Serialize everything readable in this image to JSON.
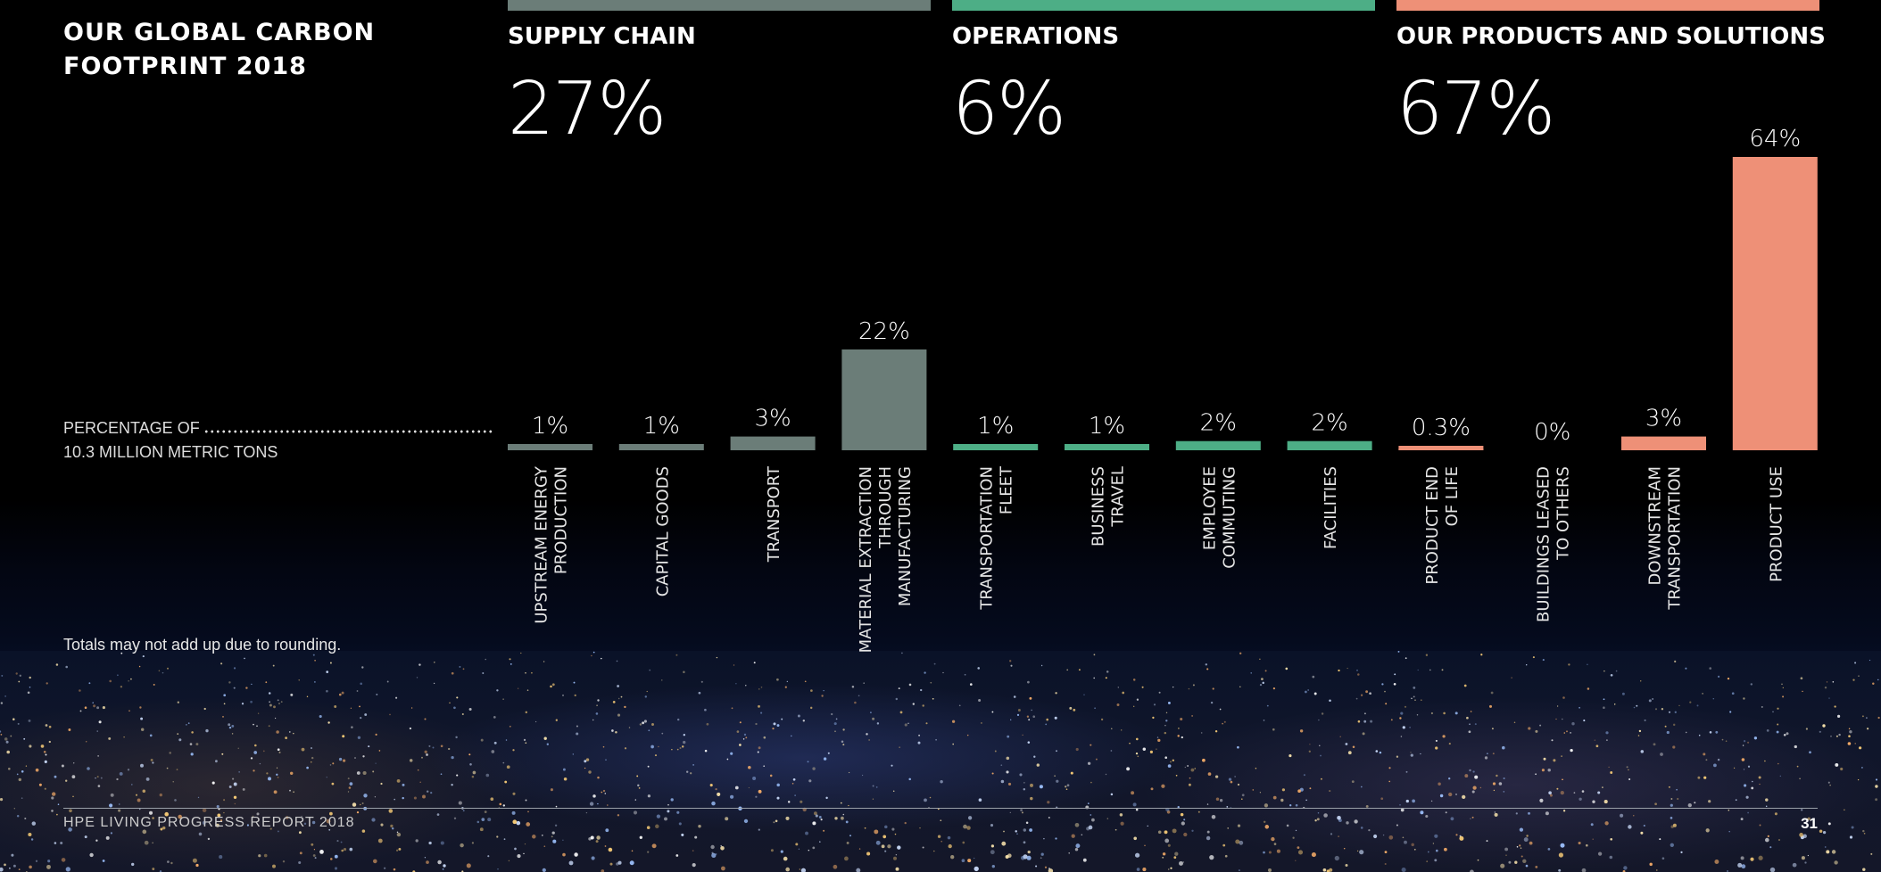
{
  "title": "OUR GLOBAL CARBON\nFOOTPRINT 2018",
  "y_note": [
    "PERCENTAGE OF",
    "10.3 MILLION METRIC TONS"
  ],
  "footnote": "Totals may not add up due to rounding.",
  "footer": {
    "report": "HPE LIVING PROGRESS REPORT 2018",
    "page": "31"
  },
  "colors": {
    "supply_chain": "#6b7d78",
    "operations": "#4dae86",
    "products": "#ee9077"
  },
  "categories": [
    {
      "key": "supply_chain",
      "title": "SUPPLY CHAIN",
      "total": "27%"
    },
    {
      "key": "operations",
      "title": "OPERATIONS",
      "total": "6%"
    },
    {
      "key": "products",
      "title": "OUR PRODUCTS AND SOLUTIONS",
      "total": "67%"
    }
  ],
  "chart_data": {
    "type": "bar",
    "title": "OUR GLOBAL CARBON FOOTPRINT 2018",
    "ylabel": "PERCENTAGE OF 10.3 MILLION METRIC TONS",
    "ylim": [
      0,
      64
    ],
    "series": [
      {
        "group": "supply_chain",
        "items": [
          {
            "label": [
              "UPSTREAM ENERGY",
              "PRODUCTION"
            ],
            "value": 1,
            "display": "1%"
          },
          {
            "label": [
              "CAPITAL GOODS"
            ],
            "value": 1,
            "display": "1%"
          },
          {
            "label": [
              "TRANSPORT"
            ],
            "value": 3,
            "display": "3%"
          },
          {
            "label": [
              "MATERIAL EXTRACTION",
              "THROUGH",
              "MANUFACTURING"
            ],
            "value": 22,
            "display": "22%"
          }
        ]
      },
      {
        "group": "operations",
        "items": [
          {
            "label": [
              "TRANSPORTATION",
              "FLEET"
            ],
            "value": 1,
            "display": "1%"
          },
          {
            "label": [
              "BUSINESS",
              "TRAVEL"
            ],
            "value": 1,
            "display": "1%"
          },
          {
            "label": [
              "EMPLOYEE",
              "COMMUTING"
            ],
            "value": 2,
            "display": "2%"
          },
          {
            "label": [
              "FACILITIES"
            ],
            "value": 2,
            "display": "2%"
          }
        ]
      },
      {
        "group": "products",
        "items": [
          {
            "label": [
              "PRODUCT END",
              "OF LIFE"
            ],
            "value": 0.3,
            "display": "0.3%"
          },
          {
            "label": [
              "BUILDINGS LEASED",
              "TO OTHERS"
            ],
            "value": 0,
            "display": "0%"
          },
          {
            "label": [
              "DOWNSTREAM",
              "TRANSPORTATION"
            ],
            "value": 3,
            "display": "3%"
          },
          {
            "label": [
              "PRODUCT USE"
            ],
            "value": 64,
            "display": "64%"
          }
        ]
      }
    ]
  }
}
